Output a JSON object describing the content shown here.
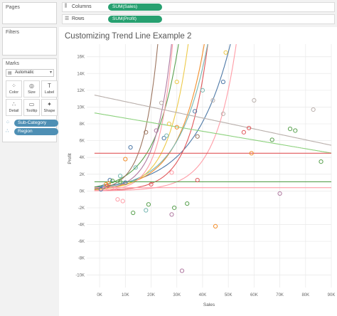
{
  "pages": {
    "title": "Pages"
  },
  "filters": {
    "title": "Filters"
  },
  "marks": {
    "title": "Marks",
    "type_label": "Automatic",
    "buttons": [
      {
        "label": "Color",
        "icon": "color-icon",
        "glyph": "⁘"
      },
      {
        "label": "Size",
        "icon": "size-icon",
        "glyph": "◎"
      },
      {
        "label": "Label",
        "icon": "label-icon",
        "glyph": "T"
      },
      {
        "label": "Detail",
        "icon": "detail-icon",
        "glyph": "∴"
      },
      {
        "label": "Tooltip",
        "icon": "tooltip-icon",
        "glyph": "▭"
      },
      {
        "label": "Shape",
        "icon": "shape-icon",
        "glyph": "✦"
      }
    ],
    "fields": [
      {
        "label": "Sub-Category",
        "icon": "color-field-icon",
        "glyph": "⁘"
      },
      {
        "label": "Region",
        "icon": "detail-field-icon",
        "glyph": "∴"
      }
    ]
  },
  "shelves": {
    "columns": {
      "label": "Columns",
      "pill": "SUM(Sales)"
    },
    "rows": {
      "label": "Rows",
      "pill": "SUM(Profit)"
    }
  },
  "chart_data": {
    "type": "scatter",
    "title": "Customizing Trend Line Example 2",
    "xlabel": "Sales",
    "ylabel": "Profit",
    "xlim": [
      -5000,
      90000
    ],
    "ylim": [
      -11500,
      17500
    ],
    "x_ticks": [
      0,
      10000,
      20000,
      30000,
      40000,
      50000,
      60000,
      70000,
      80000,
      90000
    ],
    "x_tick_labels": [
      "0K",
      "10K",
      "20K",
      "30K",
      "40K",
      "50K",
      "60K",
      "70K",
      "80K",
      "90K"
    ],
    "y_ticks": [
      -10000,
      -8000,
      -6000,
      -4000,
      -2000,
      0,
      2000,
      4000,
      6000,
      8000,
      10000,
      12000,
      14000,
      16000
    ],
    "y_tick_labels": [
      "-10K",
      "-8K",
      "-6K",
      "-4K",
      "-2K",
      "0K",
      "2K",
      "4K",
      "6K",
      "8K",
      "10K",
      "12K",
      "14K",
      "16K"
    ],
    "grid": true,
    "points": [
      {
        "x": 500,
        "y": 200,
        "color": "#4e79a7"
      },
      {
        "x": 1500,
        "y": 500,
        "color": "#4e79a7"
      },
      {
        "x": 4000,
        "y": 1300,
        "color": "#4e79a7"
      },
      {
        "x": 12000,
        "y": 5200,
        "color": "#4e79a7"
      },
      {
        "x": 25000,
        "y": 6300,
        "color": "#4e79a7"
      },
      {
        "x": 37000,
        "y": 9500,
        "color": "#4e79a7"
      },
      {
        "x": 48000,
        "y": 13000,
        "color": "#4e79a7"
      },
      {
        "x": 2500,
        "y": 800,
        "color": "#f28e2b"
      },
      {
        "x": 3500,
        "y": 900,
        "color": "#f28e2b"
      },
      {
        "x": 10000,
        "y": 3800,
        "color": "#f28e2b"
      },
      {
        "x": 30000,
        "y": 7600,
        "color": "#f28e2b"
      },
      {
        "x": 45000,
        "y": -4200,
        "color": "#f28e2b"
      },
      {
        "x": 59000,
        "y": 4500,
        "color": "#f28e2b"
      },
      {
        "x": 3000,
        "y": 600,
        "color": "#e15759"
      },
      {
        "x": 38000,
        "y": 1300,
        "color": "#e15759"
      },
      {
        "x": 56000,
        "y": 7000,
        "color": "#e15759"
      },
      {
        "x": 58000,
        "y": 7500,
        "color": "#e15759"
      },
      {
        "x": 8000,
        "y": 1800,
        "color": "#76b7b2"
      },
      {
        "x": 14000,
        "y": 2800,
        "color": "#76b7b2"
      },
      {
        "x": 26000,
        "y": 6600,
        "color": "#76b7b2"
      },
      {
        "x": 40000,
        "y": 12000,
        "color": "#76b7b2"
      },
      {
        "x": 18000,
        "y": -2300,
        "color": "#76b7b2"
      },
      {
        "x": 5000,
        "y": 1200,
        "color": "#59a14f"
      },
      {
        "x": 8000,
        "y": 1100,
        "color": "#59a14f"
      },
      {
        "x": 13000,
        "y": -2600,
        "color": "#59a14f"
      },
      {
        "x": 19000,
        "y": -1600,
        "color": "#59a14f"
      },
      {
        "x": 29000,
        "y": -2000,
        "color": "#59a14f"
      },
      {
        "x": 34000,
        "y": -1500,
        "color": "#59a14f"
      },
      {
        "x": 67000,
        "y": 6100,
        "color": "#59a14f"
      },
      {
        "x": 74000,
        "y": 7400,
        "color": "#59a14f"
      },
      {
        "x": 76000,
        "y": 7200,
        "color": "#59a14f"
      },
      {
        "x": 86000,
        "y": 3500,
        "color": "#59a14f"
      },
      {
        "x": 27000,
        "y": 8000,
        "color": "#edc948"
      },
      {
        "x": 30000,
        "y": 13000,
        "color": "#edc948"
      },
      {
        "x": 49000,
        "y": 16500,
        "color": "#edc948"
      },
      {
        "x": 22000,
        "y": 7200,
        "color": "#b07aa1"
      },
      {
        "x": 32000,
        "y": -9500,
        "color": "#b07aa1"
      },
      {
        "x": 28000,
        "y": -2800,
        "color": "#b07aa1"
      },
      {
        "x": 70000,
        "y": -300,
        "color": "#b07aa1"
      },
      {
        "x": 7000,
        "y": -1000,
        "color": "#ff9da7"
      },
      {
        "x": 9000,
        "y": -1200,
        "color": "#ff9da7"
      },
      {
        "x": 6000,
        "y": 300,
        "color": "#ff9da7"
      },
      {
        "x": 2000,
        "y": 300,
        "color": "#ff9da7"
      },
      {
        "x": 28000,
        "y": 2200,
        "color": "#ff9da7"
      },
      {
        "x": 18000,
        "y": 7000,
        "color": "#9c755f"
      },
      {
        "x": 38000,
        "y": 6500,
        "color": "#9c755f"
      },
      {
        "x": 24000,
        "y": 10500,
        "color": "#bab0ac"
      },
      {
        "x": 44000,
        "y": 10800,
        "color": "#bab0ac"
      },
      {
        "x": 48000,
        "y": 9200,
        "color": "#bab0ac"
      },
      {
        "x": 60000,
        "y": 10800,
        "color": "#bab0ac"
      },
      {
        "x": 83000,
        "y": 9700,
        "color": "#bab0ac"
      },
      {
        "x": 10000,
        "y": 1000,
        "color": "#4e79a7"
      },
      {
        "x": 20000,
        "y": 800,
        "color": "#e15759"
      }
    ],
    "trend_lines": [
      {
        "color": "#4e79a7",
        "kind": "exp",
        "a": 500,
        "b": 7e-05
      },
      {
        "color": "#f28e2b",
        "kind": "exp",
        "a": 300,
        "b": 0.0001
      },
      {
        "color": "#e15759",
        "kind": "exp",
        "a": 60,
        "b": 0.000135
      },
      {
        "color": "#76b7b2",
        "kind": "exp",
        "a": 400,
        "b": 9e-05
      },
      {
        "color": "#59a14f",
        "kind": "exp",
        "a": 600,
        "b": 0.00011
      },
      {
        "color": "#b07aa1",
        "kind": "exp",
        "a": 200,
        "b": 0.00016
      },
      {
        "color": "#edc948",
        "kind": "exp",
        "a": 200,
        "b": 0.00013
      },
      {
        "color": "#ff9da7",
        "kind": "exp",
        "a": 80,
        "b": 0.00019
      },
      {
        "color": "#9c755f",
        "kind": "exp",
        "a": 300,
        "b": 0.00018
      },
      {
        "color": "#ff9da7",
        "kind": "exp",
        "a": 30,
        "b": 0.00012
      },
      {
        "color": "#bab0ac",
        "kind": "lin",
        "y0": 11300,
        "slope": -0.065
      },
      {
        "color": "#8cd17d",
        "kind": "lin",
        "y0": 9200,
        "slope": -0.052
      },
      {
        "color": "#e15759",
        "kind": "lin",
        "y0": 4500,
        "slope": 0.0
      },
      {
        "color": "#59a14f",
        "kind": "lin",
        "y0": 1100,
        "slope": 0.0
      },
      {
        "color": "#ff9da7",
        "kind": "lin",
        "y0": 400,
        "slope": 0.0
      }
    ]
  }
}
